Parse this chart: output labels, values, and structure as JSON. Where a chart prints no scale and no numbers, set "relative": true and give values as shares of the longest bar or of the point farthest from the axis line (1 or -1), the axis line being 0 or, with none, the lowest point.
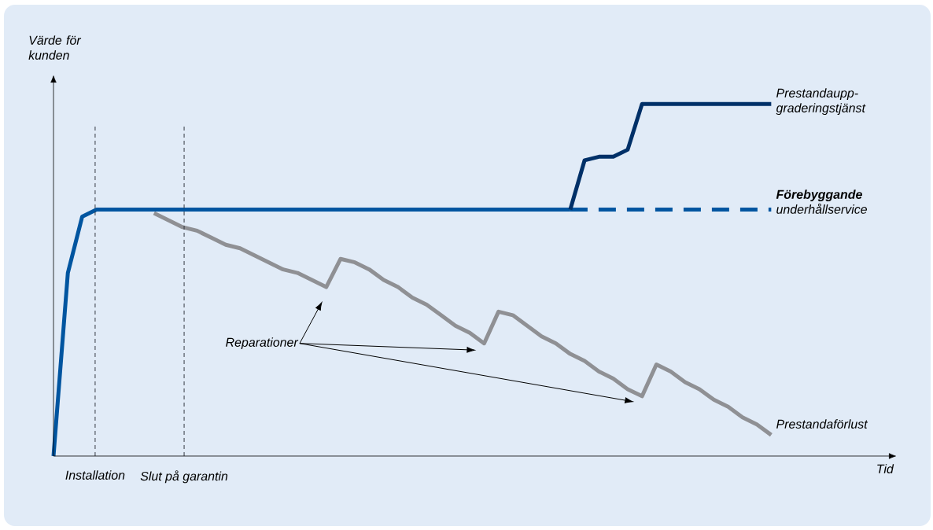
{
  "chart_data": {
    "type": "line",
    "relative": true,
    "ylabel": "Värde för kunden",
    "categories": [
      null,
      null,
      null,
      null,
      null,
      null,
      null,
      null,
      null,
      null,
      null,
      null,
      null,
      null,
      null,
      null,
      null,
      null,
      null,
      null,
      null,
      null,
      null,
      null,
      null,
      null,
      null,
      null,
      null,
      null,
      null,
      null,
      null,
      null,
      null,
      null,
      null,
      null,
      null,
      null,
      null,
      null,
      null,
      null,
      null,
      null,
      null,
      null,
      null,
      null,
      null
    ],
    "series": [
      {
        "color": "#0055a0",
        "values": [
          0,
          0.52,
          0.68,
          0.7,
          0.7,
          0.7,
          0.7,
          0.7,
          0.7,
          0.7,
          0.7,
          0.7,
          0.7,
          0.7,
          0.7,
          0.7,
          0.7,
          0.7,
          0.7,
          0.7,
          0.7,
          0.7,
          0.7,
          0.7,
          0.7,
          0.7,
          0.7,
          0.7,
          0.7,
          0.7,
          0.7,
          0.7,
          0.7,
          0.7,
          0.7,
          0.7,
          0.7,
          null,
          null,
          null,
          null,
          null,
          null,
          null,
          null,
          null,
          null,
          null,
          null,
          null,
          null
        ]
      },
      {
        "name": "**Förebyggande** underhållservice",
        "color": "#0055a0",
        "line_style": "dashed",
        "values": [
          null,
          null,
          null,
          null,
          null,
          null,
          null,
          null,
          null,
          null,
          null,
          null,
          null,
          null,
          null,
          null,
          null,
          null,
          null,
          null,
          null,
          null,
          null,
          null,
          null,
          null,
          null,
          null,
          null,
          null,
          null,
          null,
          null,
          null,
          null,
          null,
          0.7,
          0.7,
          0.7,
          0.7,
          0.7,
          0.7,
          0.7,
          0.7,
          0.7,
          0.7,
          0.7,
          0.7,
          0.7,
          0.7,
          0.7
        ]
      },
      {
        "name": "Prestandaupp-graderingstjänst",
        "color": "#003068",
        "values": [
          null,
          null,
          null,
          null,
          null,
          null,
          null,
          null,
          null,
          null,
          null,
          null,
          null,
          null,
          null,
          null,
          null,
          null,
          null,
          null,
          null,
          null,
          null,
          null,
          null,
          null,
          null,
          null,
          null,
          null,
          null,
          null,
          null,
          null,
          null,
          null,
          0.7,
          0.84,
          0.85,
          0.85,
          0.87,
          1.0,
          1.0,
          1.0,
          1.0,
          1.0,
          1.0,
          1.0,
          1.0,
          1.0,
          1.0
        ]
      },
      {
        "name": "Prestandaförlust",
        "color": "#8f9094",
        "values": [
          null,
          null,
          null,
          null,
          null,
          null,
          null,
          0.69,
          0.67,
          0.65,
          0.64,
          0.62,
          0.6,
          0.59,
          0.57,
          0.55,
          0.53,
          0.52,
          0.5,
          0.48,
          0.56,
          0.55,
          0.53,
          0.5,
          0.48,
          0.45,
          0.43,
          0.4,
          0.37,
          0.35,
          0.32,
          0.41,
          0.4,
          0.37,
          0.34,
          0.32,
          0.29,
          0.27,
          0.24,
          0.22,
          0.19,
          0.17,
          0.26,
          0.24,
          0.21,
          0.19,
          0.16,
          0.14,
          0.11,
          0.09,
          0.06
        ]
      }
    ],
    "annotations": [
      "Reparationer",
      "Installation",
      "Slut på garantin",
      "Tid"
    ]
  }
}
